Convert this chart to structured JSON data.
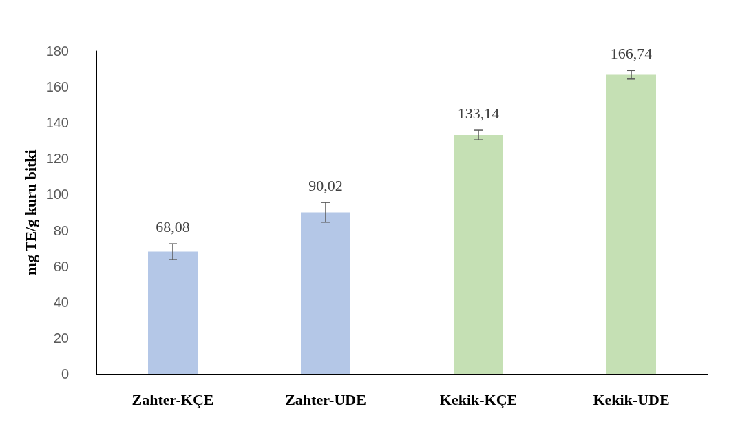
{
  "chart_data": {
    "type": "bar",
    "ylabel": "mg TE/g kuru bitki",
    "categories": [
      "Zahter-KÇE",
      "Zahter-UDE",
      "Kekik-KÇE",
      "Kekik-UDE"
    ],
    "values": [
      68.08,
      90.02,
      133.14,
      166.74
    ],
    "colors": [
      "#b4c7e7",
      "#b4c7e7",
      "#c5e0b4",
      "#c5e0b4"
    ],
    "errors": [
      4.4,
      5.5,
      2.7,
      2.4
    ],
    "value_labels": [
      "68,08",
      "90,02",
      "133,14",
      "166,74"
    ],
    "ylim": [
      0,
      180
    ],
    "yticks": [
      0,
      20,
      40,
      60,
      80,
      100,
      120,
      140,
      160,
      180
    ],
    "grid": false
  }
}
